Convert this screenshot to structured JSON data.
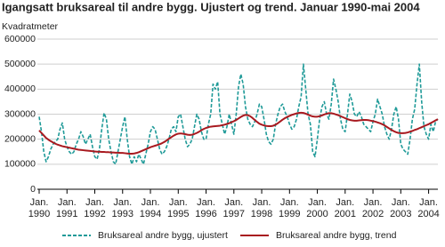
{
  "chart_data": {
    "type": "line",
    "title": "Igangsatt bruksareal til andre bygg. Ujustert og trend. Januar 1990-mai 2004",
    "y_label": "Kvadratmeter",
    "x": [
      "1990-01",
      "1990-02",
      "1990-03",
      "1990-04",
      "1990-05",
      "1990-06",
      "1990-07",
      "1990-08",
      "1990-09",
      "1990-10",
      "1990-11",
      "1990-12",
      "1991-01",
      "1991-02",
      "1991-03",
      "1991-04",
      "1991-05",
      "1991-06",
      "1991-07",
      "1991-08",
      "1991-09",
      "1991-10",
      "1991-11",
      "1991-12",
      "1992-01",
      "1992-02",
      "1992-03",
      "1992-04",
      "1992-05",
      "1992-06",
      "1992-07",
      "1992-08",
      "1992-09",
      "1992-10",
      "1992-11",
      "1992-12",
      "1993-01",
      "1993-02",
      "1993-03",
      "1993-04",
      "1993-05",
      "1993-06",
      "1993-07",
      "1993-08",
      "1993-09",
      "1993-10",
      "1993-11",
      "1993-12",
      "1994-01",
      "1994-02",
      "1994-03",
      "1994-04",
      "1994-05",
      "1994-06",
      "1994-07",
      "1994-08",
      "1994-09",
      "1994-10",
      "1994-11",
      "1994-12",
      "1995-01",
      "1995-02",
      "1995-03",
      "1995-04",
      "1995-05",
      "1995-06",
      "1995-07",
      "1995-08",
      "1995-09",
      "1995-10",
      "1995-11",
      "1995-12",
      "1996-01",
      "1996-02",
      "1996-03",
      "1996-04",
      "1996-05",
      "1996-06",
      "1996-07",
      "1996-08",
      "1996-09",
      "1996-10",
      "1996-11",
      "1996-12",
      "1997-01",
      "1997-02",
      "1997-03",
      "1997-04",
      "1997-05",
      "1997-06",
      "1997-07",
      "1997-08",
      "1997-09",
      "1997-10",
      "1997-11",
      "1997-12",
      "1998-01",
      "1998-02",
      "1998-03",
      "1998-04",
      "1998-05",
      "1998-06",
      "1998-07",
      "1998-08",
      "1998-09",
      "1998-10",
      "1998-11",
      "1998-12",
      "1999-01",
      "1999-02",
      "1999-03",
      "1999-04",
      "1999-05",
      "1999-06",
      "1999-07",
      "1999-08",
      "1999-09",
      "1999-10",
      "1999-11",
      "1999-12",
      "2000-01",
      "2000-02",
      "2000-03",
      "2000-04",
      "2000-05",
      "2000-06",
      "2000-07",
      "2000-08",
      "2000-09",
      "2000-10",
      "2000-11",
      "2000-12",
      "2001-01",
      "2001-02",
      "2001-03",
      "2001-04",
      "2001-05",
      "2001-06",
      "2001-07",
      "2001-08",
      "2001-09",
      "2001-10",
      "2001-11",
      "2001-12",
      "2002-01",
      "2002-02",
      "2002-03",
      "2002-04",
      "2002-05",
      "2002-06",
      "2002-07",
      "2002-08",
      "2002-09",
      "2002-10",
      "2002-11",
      "2002-12",
      "2003-01",
      "2003-02",
      "2003-03",
      "2003-04",
      "2003-05",
      "2003-06",
      "2003-07",
      "2003-08",
      "2003-09",
      "2003-10",
      "2003-11",
      "2003-12",
      "2004-01",
      "2004-02",
      "2004-03",
      "2004-04",
      "2004-05"
    ],
    "series": [
      {
        "name": "Bruksareal andre bygg, ujustert",
        "color": "#1f9a98",
        "dashed": true,
        "values": [
          290000,
          230000,
          150000,
          110000,
          130000,
          160000,
          180000,
          190000,
          200000,
          240000,
          265000,
          200000,
          170000,
          150000,
          140000,
          150000,
          180000,
          200000,
          230000,
          210000,
          180000,
          200000,
          220000,
          170000,
          130000,
          120000,
          160000,
          240000,
          305000,
          280000,
          200000,
          150000,
          110000,
          100000,
          150000,
          200000,
          250000,
          290000,
          200000,
          130000,
          100000,
          130000,
          110000,
          140000,
          120000,
          100000,
          140000,
          180000,
          230000,
          250000,
          240000,
          200000,
          160000,
          140000,
          150000,
          170000,
          200000,
          240000,
          250000,
          230000,
          290000,
          300000,
          250000,
          200000,
          170000,
          180000,
          200000,
          250000,
          300000,
          280000,
          230000,
          200000,
          200000,
          260000,
          300000,
          420000,
          400000,
          430000,
          300000,
          260000,
          220000,
          250000,
          300000,
          260000,
          220000,
          300000,
          410000,
          460000,
          420000,
          330000,
          280000,
          260000,
          250000,
          270000,
          300000,
          340000,
          330000,
          280000,
          220000,
          190000,
          180000,
          200000,
          260000,
          300000,
          330000,
          340000,
          310000,
          290000,
          260000,
          240000,
          250000,
          280000,
          330000,
          370000,
          500000,
          400000,
          300000,
          260000,
          150000,
          130000,
          200000,
          280000,
          330000,
          350000,
          300000,
          280000,
          340000,
          440000,
          400000,
          350000,
          280000,
          240000,
          230000,
          300000,
          380000,
          350000,
          300000,
          290000,
          310000,
          290000,
          260000,
          250000,
          240000,
          230000,
          270000,
          300000,
          360000,
          330000,
          300000,
          250000,
          220000,
          200000,
          240000,
          300000,
          330000,
          280000,
          180000,
          160000,
          150000,
          140000,
          200000,
          280000,
          320000,
          420000,
          500000,
          350000,
          250000,
          220000,
          200000,
          260000,
          230000,
          270000,
          280000
        ]
      },
      {
        "name": "Bruksareal andre bygg, trend",
        "color": "#a8191f",
        "dashed": false,
        "values": [
          235000,
          225000,
          215000,
          205000,
          198000,
          192000,
          187000,
          182000,
          178000,
          175000,
          172000,
          170000,
          168000,
          166000,
          164000,
          162000,
          160000,
          158000,
          157000,
          156000,
          155000,
          154000,
          153000,
          152000,
          151000,
          150000,
          150000,
          149000,
          149000,
          148000,
          148000,
          147000,
          147000,
          146000,
          146000,
          145000,
          145000,
          144000,
          143000,
          142000,
          142000,
          143000,
          145000,
          148000,
          152000,
          156000,
          160000,
          164000,
          168000,
          171000,
          174000,
          177000,
          180000,
          184000,
          189000,
          195000,
          202000,
          208000,
          214000,
          219000,
          222000,
          223000,
          222000,
          220000,
          218000,
          217000,
          218000,
          221000,
          225000,
          230000,
          236000,
          241000,
          245000,
          248000,
          250000,
          251000,
          252000,
          253000,
          254000,
          256000,
          258000,
          261000,
          264000,
          268000,
          272000,
          277000,
          283000,
          289000,
          294000,
          297000,
          296000,
          292000,
          285000,
          277000,
          269000,
          262000,
          258000,
          255000,
          253000,
          252000,
          252000,
          254000,
          258000,
          264000,
          271000,
          278000,
          284000,
          289000,
          293000,
          297000,
          300000,
          303000,
          305000,
          306000,
          305000,
          302000,
          298000,
          294000,
          291000,
          290000,
          290000,
          292000,
          295000,
          299000,
          302000,
          304000,
          304000,
          302000,
          299000,
          296000,
          292000,
          288000,
          284000,
          280000,
          277000,
          275000,
          274000,
          274000,
          275000,
          276000,
          277000,
          277000,
          276000,
          274000,
          272000,
          270000,
          267000,
          264000,
          260000,
          255000,
          249000,
          243000,
          237000,
          232000,
          228000,
          225000,
          224000,
          224000,
          225000,
          227000,
          230000,
          233000,
          237000,
          240000,
          244000,
          248000,
          252000,
          256000,
          260000,
          265000,
          270000,
          275000,
          280000
        ]
      }
    ],
    "xlim": [
      "1990-01",
      "2004-05"
    ],
    "xticks": [
      {
        "value": "1990-01",
        "label": "Jan.\n1990"
      },
      {
        "value": "1991-01",
        "label": "Jan.\n1991"
      },
      {
        "value": "1992-01",
        "label": "Jan.\n1992"
      },
      {
        "value": "1993-01",
        "label": "Jan.\n1993"
      },
      {
        "value": "1994-01",
        "label": "Jan.\n1994"
      },
      {
        "value": "1995-01",
        "label": "Jan.\n1995"
      },
      {
        "value": "1996-01",
        "label": "Jan.\n1996"
      },
      {
        "value": "1997-01",
        "label": "Jan.\n1997"
      },
      {
        "value": "1998-01",
        "label": "Jan.\n1998"
      },
      {
        "value": "1999-01",
        "label": "Jan.\n1999"
      },
      {
        "value": "2000-01",
        "label": "Jan.\n2000"
      },
      {
        "value": "2001-01",
        "label": "Jan.\n2001"
      },
      {
        "value": "2002-01",
        "label": "Jan.\n2002"
      },
      {
        "value": "2003-01",
        "label": "Jan.\n2003"
      },
      {
        "value": "2004-01",
        "label": "Jan.\n2004"
      }
    ],
    "ylim": [
      0,
      600000
    ],
    "yticks": [
      0,
      100000,
      200000,
      300000,
      400000,
      500000,
      600000
    ],
    "grid": true
  }
}
